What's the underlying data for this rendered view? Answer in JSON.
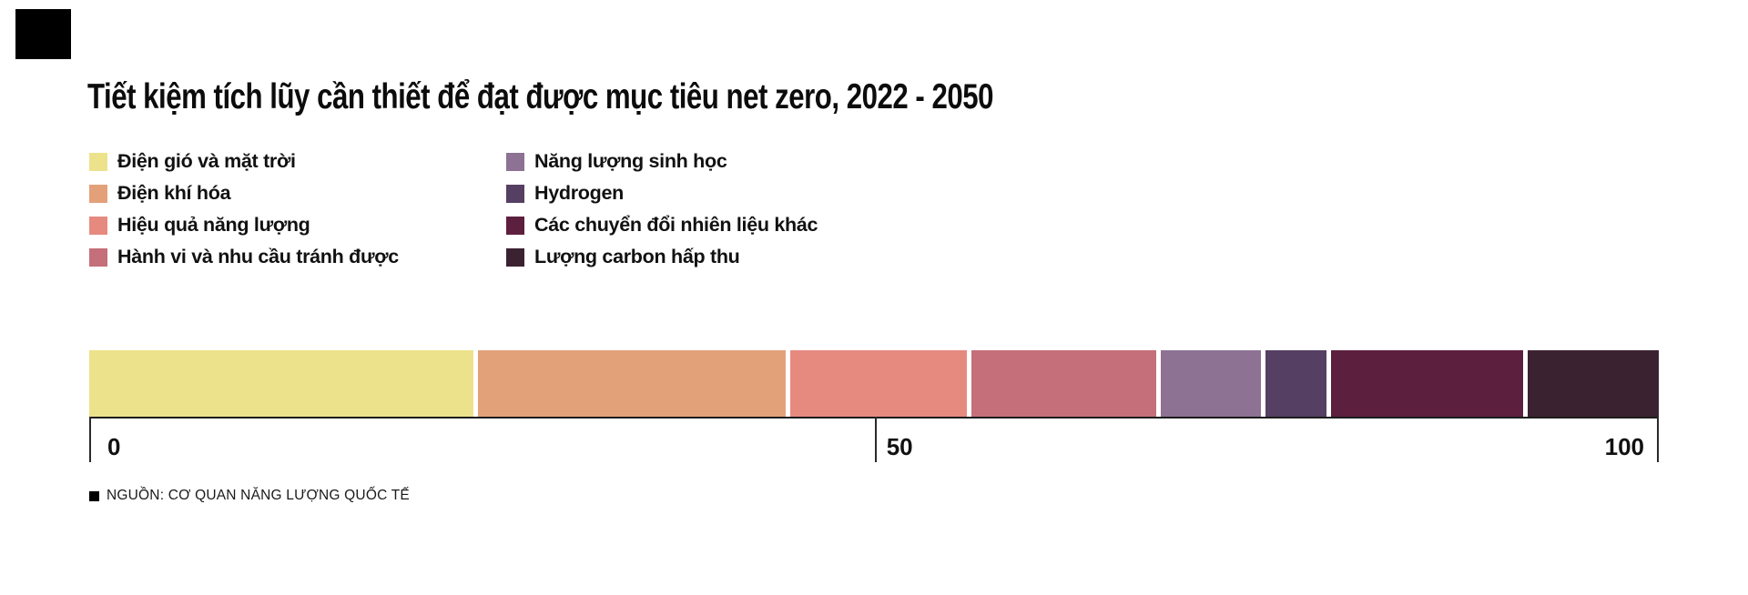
{
  "brand": {
    "color": "#000000"
  },
  "header": {
    "title": "Tiết kiệm tích lũy cần thiết để đạt được mục tiêu net zero, 2022 - 2050"
  },
  "legend": {
    "items": [
      {
        "label": "Điện gió và mặt trời",
        "color": "#ece28b"
      },
      {
        "label": "Điện khí hóa",
        "color": "#e3a179"
      },
      {
        "label": "Hiệu quả năng lượng",
        "color": "#e68a80"
      },
      {
        "label": "Hành vi và nhu cầu tránh được",
        "color": "#c46f79"
      },
      {
        "label": "Năng lượng sinh học",
        "color": "#8d7294"
      },
      {
        "label": "Hydrogen",
        "color": "#553f62"
      },
      {
        "label": "Các chuyển đổi nhiên liệu khác",
        "color": "#5d1f3e"
      },
      {
        "label": "Lượng carbon hấp thu",
        "color": "#3b2231"
      }
    ]
  },
  "axis": {
    "ticks": [
      {
        "label": "0",
        "x_pct": 0,
        "label_dx": 20,
        "anchor": "left"
      },
      {
        "label": "50",
        "x_pct": 50.1,
        "label_dx": 12,
        "anchor": "left"
      },
      {
        "label": "100",
        "x_pct": 100,
        "label_dx": -16,
        "anchor": "right"
      }
    ]
  },
  "source": {
    "label": "NGUỒN: CƠ QUAN NĂNG LƯỢNG QUỐC TẾ"
  },
  "chart_data": {
    "type": "bar",
    "subtype": "single-horizontal-stacked-bar",
    "title": "Tiết kiệm tích lũy cần thiết để đạt được mục tiêu net zero, 2022 - 2050",
    "categories": [
      "Điện gió và mặt trời",
      "Điện khí hóa",
      "Hiệu quả năng lượng",
      "Hành vi và nhu cầu tránh được",
      "Năng lượng sinh học",
      "Hydrogen",
      "Các chuyển đổi nhiên liệu khác",
      "Lượng carbon hấp thu"
    ],
    "values": [
      25,
      20,
      11.5,
      12,
      6.5,
      4,
      12.5,
      8.5
    ],
    "colors": [
      "#ece28b",
      "#e3a179",
      "#e68a80",
      "#c46f79",
      "#8d7294",
      "#553f62",
      "#5d1f3e",
      "#3b2231"
    ],
    "unit": "%",
    "xlabel": "",
    "ylabel": "",
    "xlim": [
      0,
      100
    ],
    "x_ticks": [
      0,
      50,
      100
    ],
    "grid": false,
    "legend_position": "top-left-two-columns",
    "source": "NGUỒN: CƠ QUAN NĂNG LƯỢNG QUỐC TẾ"
  }
}
